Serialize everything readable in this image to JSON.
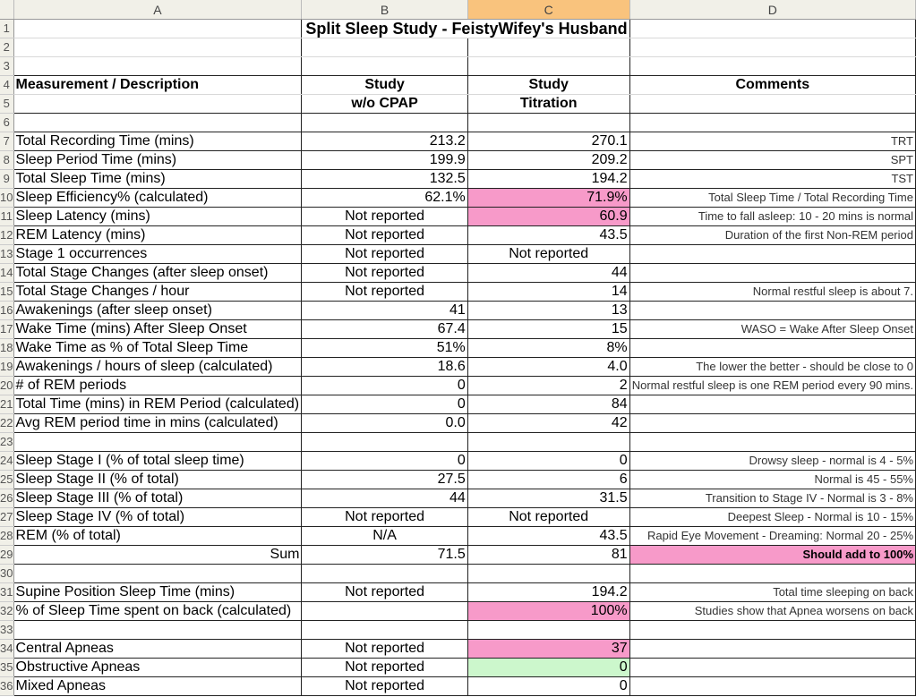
{
  "colors": {
    "pink": "#f79ac9",
    "green": "#ccf7cc",
    "active_header": "#f9c37d"
  },
  "columns": [
    "A",
    "B",
    "C",
    "D"
  ],
  "active_column": "C",
  "title": "Split Sleep Study - FeistyWifey's Husband",
  "rows": [
    {
      "n": "1",
      "a": "",
      "b": "",
      "c": "",
      "d": ""
    },
    {
      "n": "2",
      "a": "",
      "b": "",
      "c": "",
      "d": ""
    },
    {
      "n": "3",
      "a": "",
      "b": "",
      "c": "",
      "d": ""
    },
    {
      "n": "4",
      "a": "Measurement / Description",
      "b": "Study",
      "c": "Study",
      "d": "Comments"
    },
    {
      "n": "5",
      "a": "",
      "b": "w/o CPAP",
      "c": "Titration",
      "d": ""
    },
    {
      "n": "6",
      "a": "",
      "b": "",
      "c": "",
      "d": ""
    },
    {
      "n": "7",
      "a": "Total Recording Time (mins)",
      "b": "213.2",
      "c": "270.1",
      "d": "TRT"
    },
    {
      "n": "8",
      "a": "Sleep Period Time (mins)",
      "b": "199.9",
      "c": "209.2",
      "d": "SPT"
    },
    {
      "n": "9",
      "a": "Total Sleep Time (mins)",
      "b": "132.5",
      "c": "194.2",
      "d": "TST"
    },
    {
      "n": "10",
      "a": "Sleep Efficiency% (calculated)",
      "b": "62.1%",
      "c": "71.9%",
      "d": "Total Sleep Time / Total Recording Time",
      "c_fill": "pink"
    },
    {
      "n": "11",
      "a": "Sleep Latency (mins)",
      "b": "Not reported",
      "c": "60.9",
      "d": "Time to fall asleep: 10 - 20 mins is normal",
      "c_fill": "pink"
    },
    {
      "n": "12",
      "a": "REM Latency (mins)",
      "b": "Not reported",
      "c": "43.5",
      "d": "Duration of the first Non-REM period"
    },
    {
      "n": "13",
      "a": "Stage 1 occurrences",
      "b": "Not reported",
      "c": "Not reported",
      "d": ""
    },
    {
      "n": "14",
      "a": "Total Stage Changes (after sleep onset)",
      "b": "Not reported",
      "c": "44",
      "d": ""
    },
    {
      "n": "15",
      "a": "Total Stage Changes / hour",
      "b": "Not reported",
      "c": "14",
      "d": "Normal restful sleep is about 7."
    },
    {
      "n": "16",
      "a": "Awakenings (after sleep onset)",
      "b": "41",
      "c": "13",
      "d": ""
    },
    {
      "n": "17",
      "a": "Wake Time (mins) After Sleep Onset",
      "b": "67.4",
      "c": "15",
      "d": "WASO = Wake After Sleep Onset"
    },
    {
      "n": "18",
      "a": "Wake Time as % of Total Sleep Time",
      "b": "51%",
      "c": "8%",
      "d": ""
    },
    {
      "n": "19",
      "a": "Awakenings / hours of sleep (calculated)",
      "b": "18.6",
      "c": "4.0",
      "d": "The lower the better - should be close to 0"
    },
    {
      "n": "20",
      "a": "# of REM periods",
      "b": "0",
      "c": "2",
      "d": "Normal restful sleep is one REM period every 90 mins."
    },
    {
      "n": "21",
      "a": "Total Time (mins) in REM Period (calculated)",
      "b": "0",
      "c": "84",
      "d": ""
    },
    {
      "n": "22",
      "a": "Avg REM period time in mins (calculated)",
      "b": "0.0",
      "c": "42",
      "d": ""
    },
    {
      "n": "23",
      "a": "",
      "b": "",
      "c": "",
      "d": ""
    },
    {
      "n": "24",
      "a": "Sleep Stage I (% of total sleep time)",
      "b": "0",
      "c": "0",
      "d": "Drowsy sleep - normal is 4 - 5%"
    },
    {
      "n": "25",
      "a": "Sleep Stage II (% of total)",
      "b": "27.5",
      "c": "6",
      "d": "Normal is 45 - 55%"
    },
    {
      "n": "26",
      "a": "Sleep Stage III (% of total)",
      "b": "44",
      "c": "31.5",
      "d": "Transition to Stage IV - Normal is 3 - 8%"
    },
    {
      "n": "27",
      "a": "Sleep Stage IV (% of total)",
      "b": "Not reported",
      "c": "Not reported",
      "d": "Deepest Sleep - Normal is 10 - 15%"
    },
    {
      "n": "28",
      "a": "REM (% of total)",
      "b": "N/A",
      "c": "43.5",
      "d": "Rapid Eye Movement - Dreaming: Normal 20 - 25%"
    },
    {
      "n": "29",
      "a": "Sum",
      "b": "71.5",
      "c": "81",
      "d": "Should add to 100%",
      "d_fill": "pink",
      "sum": true
    },
    {
      "n": "30",
      "a": "",
      "b": "",
      "c": "",
      "d": ""
    },
    {
      "n": "31",
      "a": "Supine Position Sleep Time (mins)",
      "b": "Not reported",
      "c": "194.2",
      "d": "Total time sleeping on back"
    },
    {
      "n": "32",
      "a": "% of Sleep Time spent on back (calculated)",
      "b": "",
      "c": "100%",
      "d": "Studies show that Apnea worsens on back",
      "c_fill": "pink"
    },
    {
      "n": "33",
      "a": "",
      "b": "",
      "c": "",
      "d": ""
    },
    {
      "n": "34",
      "a": "Central Apneas",
      "b": "Not reported",
      "c": "37",
      "d": "",
      "c_fill": "pink"
    },
    {
      "n": "35",
      "a": "Obstructive Apneas",
      "b": "Not reported",
      "c": "0",
      "d": "",
      "c_fill": "green"
    },
    {
      "n": "36",
      "a": "Mixed Apneas",
      "b": "Not reported",
      "c": "0",
      "d": ""
    }
  ]
}
